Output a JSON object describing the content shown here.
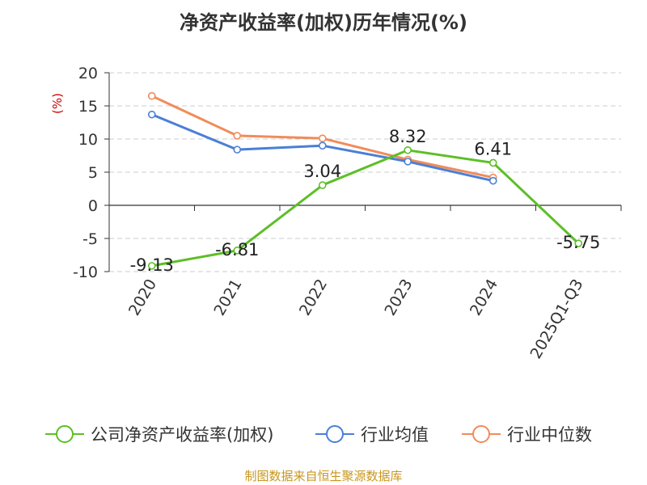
{
  "chart_data": {
    "type": "line",
    "title": "净资产收益率(加权)历年情况(%)",
    "ylabel": "(%)",
    "x": [
      "2020",
      "2021",
      "2022",
      "2023",
      "2024",
      "2025Q1-Q3"
    ],
    "ylim": [
      -10,
      20
    ],
    "yticks": [
      20,
      15,
      10,
      5,
      0,
      -5,
      -10
    ],
    "grid": true,
    "legend_position": "bottom",
    "series": [
      {
        "name": "公司净资产收益率(加权)",
        "color": "#5cbf28",
        "values": [
          -9.13,
          -6.81,
          3.04,
          8.32,
          6.41,
          -5.75
        ],
        "labels": [
          "-9.13",
          "-6.81",
          "3.04",
          "8.32",
          "6.41",
          "-5.75"
        ]
      },
      {
        "name": "行业均值",
        "color": "#4a7fd6",
        "values": [
          13.7,
          8.4,
          9.0,
          6.6,
          3.7,
          null
        ]
      },
      {
        "name": "行业中位数",
        "color": "#f08c5a",
        "values": [
          16.5,
          10.5,
          10.1,
          6.9,
          4.2,
          null
        ]
      }
    ]
  },
  "footer": "制图数据来自恒生聚源数据库"
}
